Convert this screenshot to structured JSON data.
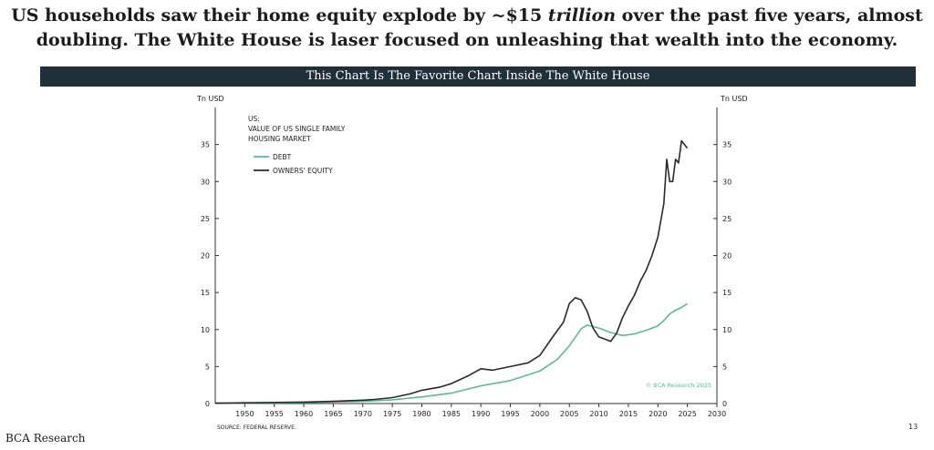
{
  "headline": {
    "part1": "US households saw their home equity explode by ~$15 ",
    "emphasis": "trillion",
    "part2": " over the past five years, almost",
    "line2": "doubling. The White House is laser focused on unleashing that wealth into the economy."
  },
  "banner": {
    "text": "This Chart Is The Favorite Chart Inside The White House"
  },
  "chart_data": {
    "type": "line",
    "left_axis_label": "Tn USD",
    "right_axis_label": "Tn USD",
    "legend_title": [
      "US:",
      "VALUE OF US SINGLE FAMILY",
      "HOUSING MARKET"
    ],
    "ylim": [
      0,
      40
    ],
    "yticks": [
      0,
      5,
      10,
      15,
      20,
      25,
      30,
      35
    ],
    "xlim": [
      1945,
      2030
    ],
    "xticks": [
      1950,
      1955,
      1960,
      1965,
      1970,
      1975,
      1980,
      1985,
      1990,
      1995,
      2000,
      2005,
      2010,
      2015,
      2020,
      2025,
      2030
    ],
    "watermark": "© BCA Research 2025",
    "series": [
      {
        "name": "DEBT",
        "color": "#5fb89d",
        "x": [
          1945,
          1950,
          1955,
          1960,
          1965,
          1970,
          1975,
          1980,
          1985,
          1990,
          1995,
          2000,
          2003,
          2005,
          2007,
          2008,
          2010,
          2012,
          2014,
          2016,
          2018,
          2020,
          2021,
          2022,
          2023,
          2024,
          2025
        ],
        "values": [
          0.02,
          0.05,
          0.09,
          0.14,
          0.22,
          0.3,
          0.5,
          0.9,
          1.4,
          2.4,
          3.1,
          4.4,
          6.0,
          7.8,
          10.1,
          10.6,
          10.2,
          9.6,
          9.2,
          9.4,
          9.9,
          10.5,
          11.2,
          12.1,
          12.6,
          13.0,
          13.5
        ]
      },
      {
        "name": "OWNERS' EQUITY",
        "color": "#2a2a2a",
        "x": [
          1945,
          1950,
          1955,
          1960,
          1965,
          1970,
          1972,
          1975,
          1978,
          1980,
          1983,
          1985,
          1988,
          1990,
          1992,
          1995,
          1998,
          2000,
          2002,
          2004,
          2005,
          2006,
          2007,
          2008,
          2009,
          2010,
          2011,
          2012,
          2013,
          2014,
          2015,
          2016,
          2017,
          2018,
          2019,
          2020,
          2021,
          2021.5,
          2022,
          2022.5,
          2023,
          2023.5,
          2024,
          2024.5,
          2025
        ],
        "values": [
          0.05,
          0.1,
          0.15,
          0.2,
          0.3,
          0.45,
          0.55,
          0.8,
          1.3,
          1.8,
          2.2,
          2.7,
          3.8,
          4.7,
          4.5,
          5.0,
          5.5,
          6.5,
          8.8,
          11.0,
          13.5,
          14.3,
          14.0,
          12.5,
          10.2,
          9.0,
          8.7,
          8.4,
          9.5,
          11.6,
          13.2,
          14.6,
          16.5,
          18.0,
          20.0,
          22.5,
          27.0,
          33.0,
          30.0,
          30.0,
          33.0,
          32.5,
          35.5,
          35.0,
          34.5
        ]
      }
    ]
  },
  "source": "SOURCE: FEDERAL RESERVE.",
  "footer": {
    "logo": "BCA Research",
    "page_number": "13"
  }
}
